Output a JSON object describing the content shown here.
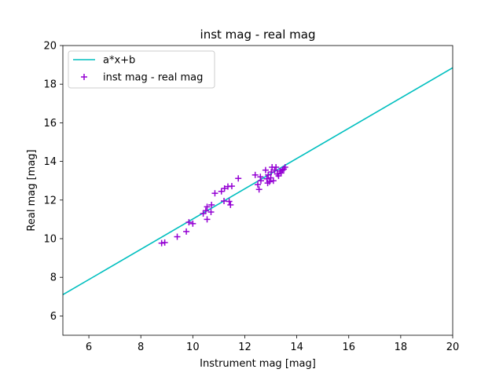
{
  "chart_data": {
    "type": "scatter",
    "title": "inst mag - real mag",
    "xlabel": "Instrument mag [mag]",
    "ylabel": "Real mag [mag]",
    "xlim": [
      5,
      20
    ],
    "ylim": [
      5,
      20
    ],
    "xticks": [
      6,
      8,
      10,
      12,
      14,
      16,
      18,
      20
    ],
    "yticks": [
      6,
      8,
      10,
      12,
      14,
      16,
      18,
      20
    ],
    "grid": false,
    "legend_position": "top-left",
    "series": [
      {
        "name": "a*x+b",
        "kind": "line",
        "color": "#00bfbf",
        "x": [
          5,
          20
        ],
        "y": [
          7.1,
          18.85
        ]
      },
      {
        "name": "inst mag - real mag",
        "kind": "scatter",
        "marker": "plus",
        "color": "#9400d3",
        "points": [
          [
            8.8,
            9.77
          ],
          [
            8.92,
            9.8
          ],
          [
            9.4,
            10.1
          ],
          [
            9.75,
            10.37
          ],
          [
            9.85,
            10.85
          ],
          [
            10.0,
            10.78
          ],
          [
            10.4,
            11.3
          ],
          [
            10.5,
            11.45
          ],
          [
            10.55,
            11.65
          ],
          [
            10.55,
            11.0
          ],
          [
            10.7,
            11.38
          ],
          [
            10.72,
            11.75
          ],
          [
            10.85,
            12.35
          ],
          [
            11.1,
            12.45
          ],
          [
            11.2,
            11.95
          ],
          [
            11.22,
            12.6
          ],
          [
            11.35,
            12.7
          ],
          [
            11.4,
            11.93
          ],
          [
            11.45,
            11.75
          ],
          [
            11.5,
            12.72
          ],
          [
            11.75,
            13.12
          ],
          [
            12.4,
            13.3
          ],
          [
            12.5,
            12.8
          ],
          [
            12.55,
            12.55
          ],
          [
            12.6,
            13.2
          ],
          [
            12.62,
            13.0
          ],
          [
            12.8,
            13.55
          ],
          [
            12.85,
            13.1
          ],
          [
            12.88,
            12.88
          ],
          [
            12.9,
            13.3
          ],
          [
            12.95,
            12.95
          ],
          [
            13.0,
            13.15
          ],
          [
            13.02,
            13.45
          ],
          [
            13.05,
            13.7
          ],
          [
            13.1,
            13.0
          ],
          [
            13.15,
            13.55
          ],
          [
            13.2,
            13.7
          ],
          [
            13.25,
            13.35
          ],
          [
            13.3,
            13.25
          ],
          [
            13.35,
            13.5
          ],
          [
            13.4,
            13.4
          ],
          [
            13.45,
            13.55
          ],
          [
            13.5,
            13.6
          ],
          [
            13.55,
            13.7
          ]
        ]
      }
    ]
  }
}
